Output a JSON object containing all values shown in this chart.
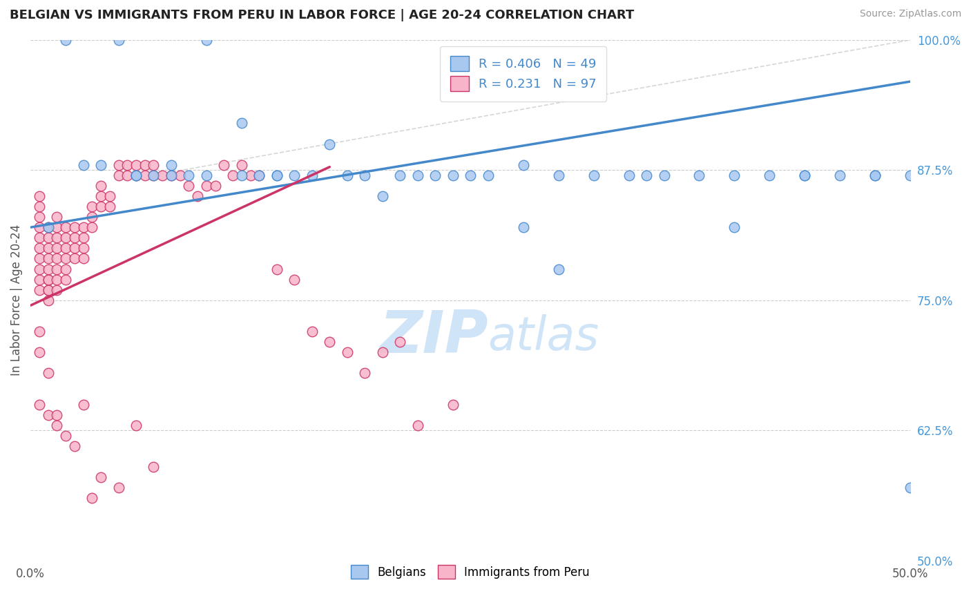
{
  "title": "BELGIAN VS IMMIGRANTS FROM PERU IN LABOR FORCE | AGE 20-24 CORRELATION CHART",
  "source": "Source: ZipAtlas.com",
  "ylabel": "In Labor Force | Age 20-24",
  "xlim": [
    0.0,
    0.5
  ],
  "ylim": [
    0.5,
    1.0
  ],
  "ytick_positions": [
    0.5,
    0.625,
    0.75,
    0.875,
    1.0
  ],
  "ytick_labels": [
    "50.0%",
    "62.5%",
    "75.0%",
    "87.5%",
    "100.0%"
  ],
  "blue_color": "#A8C8F0",
  "pink_color": "#F8B4C8",
  "blue_line_color": "#4488CC",
  "pink_line_color": "#CC3366",
  "ref_line_color": "#CCCCCC",
  "r_blue": 0.406,
  "n_blue": 49,
  "r_pink": 0.231,
  "n_pink": 97,
  "legend_text_color": "#4488CC",
  "watermark_color": "#D0E4F8",
  "blue_line_x0": 0.0,
  "blue_line_y0": 0.82,
  "blue_line_x1": 0.5,
  "blue_line_y1": 0.96,
  "pink_line_x0": 0.0,
  "pink_line_y0": 0.745,
  "pink_line_x1": 0.17,
  "pink_line_y1": 0.878,
  "ref_line_x0": 0.07,
  "ref_line_y0": 0.87,
  "ref_line_x1": 0.5,
  "ref_line_y1": 1.0,
  "blue_scatter_x": [
    0.01,
    0.02,
    0.03,
    0.04,
    0.05,
    0.06,
    0.07,
    0.08,
    0.09,
    0.1,
    0.12,
    0.13,
    0.14,
    0.15,
    0.17,
    0.19,
    0.21,
    0.23,
    0.25,
    0.28,
    0.3,
    0.32,
    0.35,
    0.38,
    0.4,
    0.42,
    0.44,
    0.46,
    0.48,
    0.5,
    0.06,
    0.08,
    0.1,
    0.12,
    0.14,
    0.16,
    0.18,
    0.2,
    0.22,
    0.24,
    0.26,
    0.28,
    0.3,
    0.34,
    0.36,
    0.4,
    0.44,
    0.48,
    0.5
  ],
  "blue_scatter_y": [
    0.82,
    1.0,
    0.88,
    0.88,
    1.0,
    0.87,
    0.87,
    0.87,
    0.87,
    1.0,
    0.92,
    0.87,
    0.87,
    0.87,
    0.9,
    0.87,
    0.87,
    0.87,
    0.87,
    0.88,
    0.87,
    0.87,
    0.87,
    0.87,
    0.87,
    0.87,
    0.87,
    0.87,
    0.87,
    0.87,
    0.87,
    0.88,
    0.87,
    0.87,
    0.87,
    0.87,
    0.87,
    0.85,
    0.87,
    0.87,
    0.87,
    0.82,
    0.78,
    0.87,
    0.87,
    0.82,
    0.87,
    0.87,
    0.57
  ],
  "pink_scatter_x": [
    0.005,
    0.005,
    0.005,
    0.005,
    0.005,
    0.005,
    0.005,
    0.005,
    0.005,
    0.005,
    0.01,
    0.01,
    0.01,
    0.01,
    0.01,
    0.01,
    0.01,
    0.01,
    0.01,
    0.01,
    0.015,
    0.015,
    0.015,
    0.015,
    0.015,
    0.015,
    0.015,
    0.015,
    0.02,
    0.02,
    0.02,
    0.02,
    0.02,
    0.02,
    0.025,
    0.025,
    0.025,
    0.025,
    0.03,
    0.03,
    0.03,
    0.03,
    0.035,
    0.035,
    0.035,
    0.04,
    0.04,
    0.04,
    0.045,
    0.045,
    0.05,
    0.05,
    0.055,
    0.055,
    0.06,
    0.06,
    0.065,
    0.065,
    0.07,
    0.07,
    0.075,
    0.08,
    0.085,
    0.09,
    0.095,
    0.1,
    0.105,
    0.11,
    0.115,
    0.12,
    0.125,
    0.13,
    0.14,
    0.15,
    0.16,
    0.17,
    0.18,
    0.19,
    0.2,
    0.21,
    0.22,
    0.24,
    0.005,
    0.005,
    0.005,
    0.01,
    0.01,
    0.015,
    0.015,
    0.02,
    0.025,
    0.03,
    0.035,
    0.04,
    0.05,
    0.06,
    0.07
  ],
  "pink_scatter_y": [
    0.76,
    0.77,
    0.78,
    0.79,
    0.8,
    0.81,
    0.82,
    0.83,
    0.84,
    0.85,
    0.75,
    0.76,
    0.77,
    0.78,
    0.79,
    0.8,
    0.81,
    0.82,
    0.76,
    0.77,
    0.76,
    0.77,
    0.78,
    0.79,
    0.8,
    0.81,
    0.82,
    0.83,
    0.77,
    0.78,
    0.79,
    0.8,
    0.81,
    0.82,
    0.79,
    0.8,
    0.81,
    0.82,
    0.79,
    0.8,
    0.81,
    0.82,
    0.82,
    0.83,
    0.84,
    0.84,
    0.85,
    0.86,
    0.84,
    0.85,
    0.87,
    0.88,
    0.87,
    0.88,
    0.87,
    0.88,
    0.87,
    0.88,
    0.87,
    0.88,
    0.87,
    0.87,
    0.87,
    0.86,
    0.85,
    0.86,
    0.86,
    0.88,
    0.87,
    0.88,
    0.87,
    0.87,
    0.78,
    0.77,
    0.72,
    0.71,
    0.7,
    0.68,
    0.7,
    0.71,
    0.63,
    0.65,
    0.72,
    0.7,
    0.65,
    0.68,
    0.64,
    0.64,
    0.63,
    0.62,
    0.61,
    0.65,
    0.56,
    0.58,
    0.57,
    0.63,
    0.59
  ]
}
